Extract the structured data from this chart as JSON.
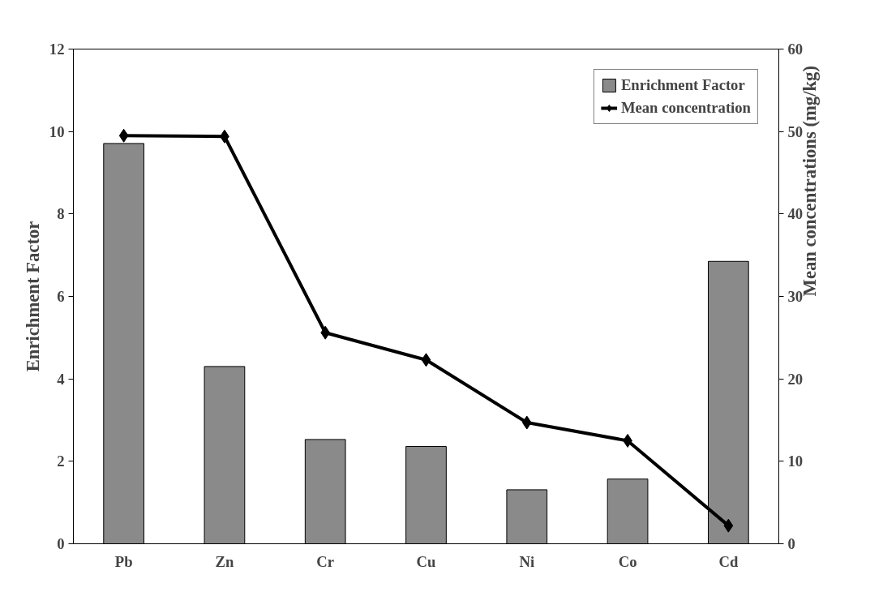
{
  "chart_data": {
    "type": "bar",
    "categories": [
      "Pb",
      "Zn",
      "Cr",
      "Cu",
      "Ni",
      "Co",
      "Cd"
    ],
    "ylabel": "Enrichment Factor",
    "y2label": "Mean concentrations (mg/kg)",
    "ylim": [
      0,
      12
    ],
    "yticks": [
      0,
      2,
      4,
      6,
      8,
      10,
      12
    ],
    "y2lim": [
      0,
      60
    ],
    "y2ticks": [
      0,
      10,
      20,
      30,
      40,
      50,
      60
    ],
    "legend": "top right",
    "grid": false,
    "series": [
      {
        "name": "Enrichment Factor",
        "color": "#8a8a8a",
        "values": [
          9.71,
          4.3,
          2.53,
          2.36,
          1.31,
          1.57,
          6.85
        ]
      },
      {
        "name": "Mean concentration",
        "type": "line",
        "axis": "y2",
        "color": "#000000",
        "marker": "diamond",
        "line_style": "solid",
        "values": [
          49.5,
          49.4,
          25.6,
          22.3,
          14.7,
          12.5,
          2.2
        ]
      }
    ]
  }
}
